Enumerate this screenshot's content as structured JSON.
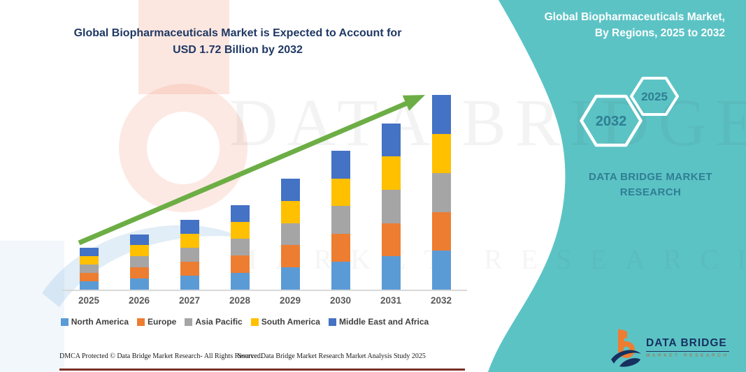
{
  "title": {
    "line1": "Global Biopharmaceuticals Market is Expected to Account for",
    "line2": "USD 1.72 Billion by 2032"
  },
  "chart_data": {
    "type": "bar",
    "stacked": true,
    "title": "Global Biopharmaceuticals Market is Expected to Account for USD 1.72 Billion by 2032",
    "unit": "USD Billion",
    "categories": [
      "2025",
      "2026",
      "2027",
      "2028",
      "2029",
      "2030",
      "2031",
      "2032"
    ],
    "series": [
      {
        "name": "North America",
        "color": "#5B9BD5",
        "values": [
          0.074,
          0.098,
          0.124,
          0.15,
          0.196,
          0.246,
          0.294,
          0.344
        ]
      },
      {
        "name": "Europe",
        "color": "#ED7D31",
        "values": [
          0.074,
          0.098,
          0.124,
          0.15,
          0.196,
          0.246,
          0.294,
          0.344
        ]
      },
      {
        "name": "Asia Pacific",
        "color": "#A5A5A5",
        "values": [
          0.074,
          0.098,
          0.124,
          0.15,
          0.196,
          0.246,
          0.294,
          0.344
        ]
      },
      {
        "name": "South America",
        "color": "#FFC000",
        "values": [
          0.074,
          0.098,
          0.124,
          0.15,
          0.196,
          0.246,
          0.294,
          0.344
        ]
      },
      {
        "name": "Middle East and Africa",
        "color": "#4472C4",
        "values": [
          0.074,
          0.098,
          0.124,
          0.15,
          0.196,
          0.246,
          0.294,
          0.344
        ]
      }
    ],
    "totals_usd_billion": [
      0.37,
      0.49,
      0.62,
      0.75,
      0.98,
      1.23,
      1.47,
      1.72
    ],
    "value_axis_visible": false,
    "gridlines": false,
    "legend_position": "bottom",
    "trend_arrow_color": "#6CAE45"
  },
  "side_panel": {
    "heading_line1": "Global Biopharmaceuticals Market,",
    "heading_line2": "By Regions, 2025 to 2032",
    "hexagon_back_label": "2032",
    "hexagon_front_label": "2025",
    "brand_line1": "DATA BRIDGE MARKET",
    "brand_line2": "RESEARCH",
    "panel_color": "#5CC3C5",
    "brand_text_color": "#2F7E93"
  },
  "logo": {
    "name": "DATA BRIDGE",
    "subtext": "MARKET RESEARCH"
  },
  "footer": {
    "dmca": "DMCA Protected © Data Bridge Market Research-  All Rights Reserved.",
    "source": "Source: Data Bridge Market Research  Market Analysis Study 2025"
  },
  "watermark": {
    "line1": "DATA BRIDGE",
    "line2": "MARKET RESEARCH"
  }
}
